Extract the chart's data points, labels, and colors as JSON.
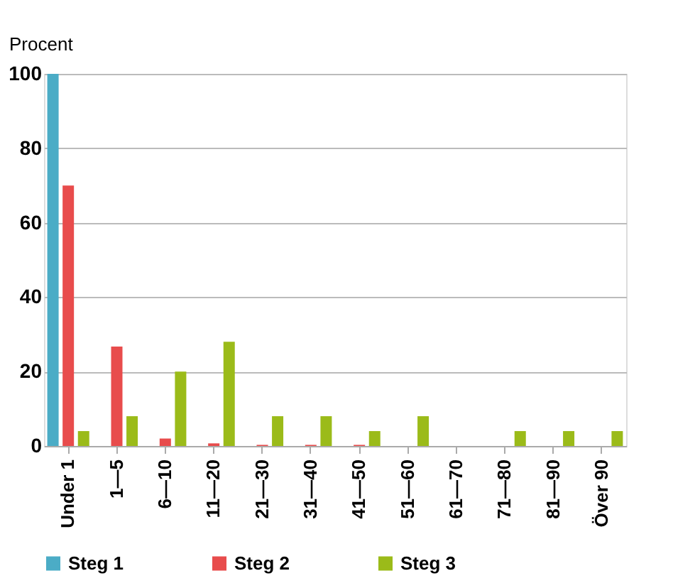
{
  "chart_data": {
    "type": "bar",
    "ylabel": "Procent",
    "categories": [
      "Under 1",
      "1—5",
      "6—10",
      "11—20",
      "21—30",
      "31—40",
      "41—50",
      "51—60",
      "61—70",
      "71—80",
      "81—90",
      "Över 90"
    ],
    "series": [
      {
        "name": "Steg 1",
        "color": "#4bacc6",
        "values": [
          100,
          0,
          0,
          0,
          0,
          0,
          0,
          0,
          0,
          0,
          0,
          0
        ]
      },
      {
        "name": "Steg 2",
        "color": "#e84c4c",
        "values": [
          70,
          26.7,
          2,
          0.7,
          0.3,
          0.3,
          0.3,
          0,
          0,
          0,
          0,
          0
        ]
      },
      {
        "name": "Steg 3",
        "color": "#9bbb19",
        "values": [
          4,
          8,
          20,
          28,
          8,
          8,
          4,
          8,
          0,
          4,
          4,
          4
        ]
      }
    ],
    "ylim": [
      0,
      100
    ],
    "yticks": [
      0,
      20,
      40,
      60,
      80,
      100
    ],
    "grid": "y",
    "legend": "bottom"
  }
}
